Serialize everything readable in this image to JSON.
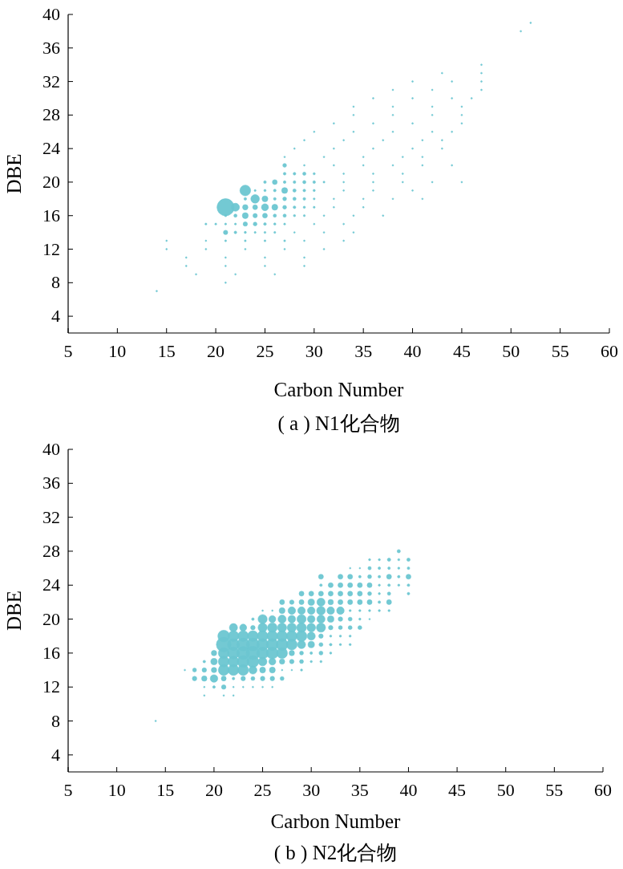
{
  "chart_data": [
    {
      "type": "bubble",
      "title": "( a ) N1化合物",
      "xlabel": "Carbon Number",
      "ylabel": "DBE",
      "color": "#6cc6d1",
      "xlim": [
        5,
        60
      ],
      "ylim": [
        2,
        40
      ],
      "xticks": [
        5,
        10,
        15,
        20,
        25,
        30,
        35,
        40,
        45,
        50,
        55,
        60
      ],
      "yticks": [
        4,
        8,
        12,
        16,
        20,
        24,
        28,
        32,
        36,
        40
      ],
      "x": [
        52,
        51,
        47,
        43,
        47,
        40,
        44,
        47,
        38,
        42,
        47,
        36,
        40,
        44,
        46,
        34,
        38,
        42,
        45,
        34,
        38,
        42,
        45,
        32,
        36,
        40,
        45,
        30,
        34,
        38,
        42,
        44,
        29,
        33,
        37,
        41,
        43,
        28,
        32,
        36,
        40,
        43,
        27,
        31,
        35,
        39,
        41,
        27,
        29,
        32,
        35,
        38,
        41,
        44,
        27,
        28,
        29,
        30,
        33,
        36,
        39,
        25,
        26,
        27,
        28,
        29,
        30,
        31,
        33,
        36,
        39,
        42,
        45,
        23,
        24,
        25,
        26,
        27,
        28,
        29,
        30,
        33,
        36,
        40,
        23,
        24,
        25,
        26,
        27,
        28,
        29,
        30,
        32,
        35,
        38,
        41,
        21,
        22,
        23,
        24,
        25,
        26,
        27,
        28,
        29,
        30,
        32,
        35,
        21,
        22,
        23,
        24,
        25,
        26,
        27,
        28,
        29,
        31,
        34,
        37,
        19,
        20,
        21,
        22,
        23,
        24,
        25,
        26,
        27,
        30,
        33,
        21,
        22,
        23,
        24,
        25,
        26,
        28,
        31,
        34,
        15,
        19,
        21,
        23,
        25,
        27,
        29,
        33,
        15,
        19,
        23,
        27,
        31,
        17,
        21,
        25,
        29,
        17,
        21,
        25,
        29,
        18,
        22,
        26,
        21,
        14
      ],
      "values": [
        39,
        38,
        34,
        33,
        33,
        32,
        32,
        32,
        31,
        31,
        31,
        30,
        30,
        30,
        30,
        29,
        29,
        29,
        29,
        28,
        28,
        28,
        28,
        27,
        27,
        27,
        27,
        26,
        26,
        26,
        26,
        26,
        25,
        25,
        25,
        25,
        25,
        24,
        24,
        24,
        24,
        24,
        23,
        23,
        23,
        23,
        23,
        22,
        22,
        22,
        22,
        22,
        22,
        22,
        21,
        21,
        21,
        21,
        21,
        21,
        21,
        20,
        20,
        20,
        20,
        20,
        20,
        20,
        20,
        20,
        20,
        20,
        20,
        19,
        19,
        19,
        19,
        19,
        19,
        19,
        19,
        19,
        19,
        19,
        18,
        18,
        18,
        18,
        18,
        18,
        18,
        18,
        18,
        18,
        18,
        18,
        17,
        17,
        17,
        17,
        17,
        17,
        17,
        17,
        17,
        17,
        17,
        17,
        16,
        16,
        16,
        16,
        16,
        16,
        16,
        16,
        16,
        16,
        16,
        16,
        15,
        15,
        15,
        15,
        15,
        15,
        15,
        15,
        15,
        15,
        15,
        14,
        14,
        14,
        14,
        14,
        14,
        14,
        14,
        14,
        13,
        13,
        13,
        13,
        13,
        13,
        13,
        13,
        12,
        12,
        12,
        12,
        12,
        11,
        11,
        11,
        11,
        10,
        10,
        10,
        10,
        9,
        9,
        9,
        8,
        7
      ],
      "sizes": [
        0.008,
        0.008,
        0.008,
        0.008,
        0.008,
        0.008,
        0.008,
        0.008,
        0.008,
        0.008,
        0.008,
        0.008,
        0.008,
        0.008,
        0.008,
        0.008,
        0.008,
        0.008,
        0.008,
        0.008,
        0.008,
        0.008,
        0.008,
        0.008,
        0.008,
        0.008,
        0.008,
        0.008,
        0.008,
        0.008,
        0.008,
        0.008,
        0.008,
        0.008,
        0.008,
        0.008,
        0.008,
        0.008,
        0.008,
        0.008,
        0.008,
        0.008,
        0.008,
        0.008,
        0.008,
        0.008,
        0.008,
        0.048,
        0.008,
        0.008,
        0.008,
        0.008,
        0.008,
        0.008,
        0.024,
        0.024,
        0.035,
        0.016,
        0.008,
        0.008,
        0.008,
        0.024,
        0.079,
        0.024,
        0.024,
        0.035,
        0.024,
        0.012,
        0.008,
        0.008,
        0.008,
        0.008,
        0.008,
        0.39,
        0.012,
        0.016,
        0.024,
        0.118,
        0.035,
        0.024,
        0.016,
        0.008,
        0.008,
        0.008,
        0.024,
        0.25,
        0.118,
        0.024,
        0.048,
        0.035,
        0.024,
        0.012,
        0.008,
        0.008,
        0.008,
        0.008,
        1,
        0.22,
        0.098,
        0.079,
        0.165,
        0.118,
        0.048,
        0.024,
        0.016,
        0.012,
        0.008,
        0.008,
        0.016,
        0.035,
        0.118,
        0.063,
        0.079,
        0.035,
        0.035,
        0.016,
        0.012,
        0.008,
        0.008,
        0.008,
        0.012,
        0.012,
        0.012,
        0.012,
        0.063,
        0.048,
        0.024,
        0.016,
        0.012,
        0.008,
        0.008,
        0.063,
        0.024,
        0.016,
        0.012,
        0.012,
        0.012,
        0.008,
        0.008,
        0.008,
        0.008,
        0.008,
        0.012,
        0.012,
        0.012,
        0.012,
        0.008,
        0.008,
        0.008,
        0.008,
        0.008,
        0.008,
        0.008,
        0.008,
        0.008,
        0.008,
        0.008,
        0.008,
        0.008,
        0.008,
        0.008,
        0.008,
        0.008,
        0.008,
        0.008,
        0.008
      ]
    },
    {
      "type": "bubble",
      "title": "( b ) N2化合物",
      "xlabel": "Carbon Number",
      "ylabel": "DBE",
      "color": "#6cc6d1",
      "xlim": [
        5,
        60
      ],
      "ylim": [
        2,
        40
      ],
      "xticks": [
        5,
        10,
        15,
        20,
        25,
        30,
        35,
        40,
        45,
        50,
        55,
        60
      ],
      "yticks": [
        4,
        8,
        12,
        16,
        20,
        24,
        28,
        32,
        36,
        40
      ],
      "x": [
        39,
        36,
        37,
        38,
        39,
        40,
        34,
        35,
        36,
        37,
        38,
        39,
        40,
        31,
        33,
        34,
        35,
        36,
        37,
        38,
        39,
        40,
        31,
        32,
        33,
        34,
        35,
        36,
        37,
        38,
        39,
        40,
        29,
        30,
        31,
        32,
        33,
        34,
        35,
        36,
        37,
        38,
        40,
        27,
        28,
        29,
        30,
        31,
        32,
        33,
        34,
        35,
        36,
        37,
        38,
        25,
        26,
        27,
        28,
        29,
        30,
        31,
        32,
        33,
        34,
        35,
        36,
        37,
        38,
        24,
        25,
        26,
        27,
        28,
        29,
        30,
        31,
        32,
        33,
        34,
        35,
        36,
        22,
        23,
        24,
        25,
        26,
        27,
        28,
        29,
        30,
        31,
        32,
        33,
        34,
        35,
        21,
        22,
        23,
        24,
        25,
        26,
        27,
        28,
        29,
        30,
        31,
        32,
        33,
        34,
        21,
        22,
        23,
        24,
        25,
        26,
        27,
        28,
        29,
        30,
        31,
        32,
        33,
        34,
        20,
        21,
        22,
        23,
        24,
        25,
        26,
        27,
        28,
        29,
        30,
        31,
        32,
        19,
        20,
        21,
        22,
        23,
        24,
        25,
        26,
        27,
        28,
        29,
        30,
        31,
        17,
        18,
        19,
        20,
        21,
        22,
        23,
        24,
        25,
        26,
        27,
        28,
        29,
        18,
        19,
        20,
        21,
        22,
        23,
        24,
        25,
        26,
        27,
        19,
        20,
        21,
        22,
        23,
        24,
        25,
        26,
        19,
        21,
        22,
        14
      ],
      "values": [
        28,
        27,
        27,
        27,
        27,
        27,
        26,
        26,
        26,
        26,
        26,
        26,
        26,
        25,
        25,
        25,
        25,
        25,
        25,
        25,
        25,
        25,
        24,
        24,
        24,
        24,
        24,
        24,
        24,
        24,
        24,
        24,
        23,
        23,
        23,
        23,
        23,
        23,
        23,
        23,
        23,
        23,
        23,
        22,
        22,
        22,
        22,
        22,
        22,
        22,
        22,
        22,
        22,
        22,
        22,
        21,
        21,
        21,
        21,
        21,
        21,
        21,
        21,
        21,
        21,
        21,
        21,
        21,
        21,
        20,
        20,
        20,
        20,
        20,
        20,
        20,
        20,
        20,
        20,
        20,
        20,
        20,
        19,
        19,
        19,
        19,
        19,
        19,
        19,
        19,
        19,
        19,
        19,
        19,
        19,
        19,
        18,
        18,
        18,
        18,
        18,
        18,
        18,
        18,
        18,
        18,
        18,
        18,
        18,
        18,
        17,
        17,
        17,
        17,
        17,
        17,
        17,
        17,
        17,
        17,
        17,
        17,
        17,
        17,
        16,
        16,
        16,
        16,
        16,
        16,
        16,
        16,
        16,
        16,
        16,
        16,
        16,
        15,
        15,
        15,
        15,
        15,
        15,
        15,
        15,
        15,
        15,
        15,
        15,
        15,
        14,
        14,
        14,
        14,
        14,
        14,
        14,
        14,
        14,
        14,
        14,
        14,
        14,
        13,
        13,
        13,
        13,
        13,
        13,
        13,
        13,
        13,
        13,
        12,
        12,
        12,
        12,
        12,
        12,
        12,
        12,
        11,
        11,
        11,
        8
      ],
      "sizes": [
        0.05,
        0.02,
        0.02,
        0.05,
        0.02,
        0.05,
        0.01,
        0.01,
        0.05,
        0.03,
        0.03,
        0.02,
        0.03,
        0.11,
        0.11,
        0.11,
        0.03,
        0.07,
        0.03,
        0.11,
        0.03,
        0.11,
        0.03,
        0.11,
        0.11,
        0.11,
        0.11,
        0.11,
        0.02,
        0.03,
        0.02,
        0.03,
        0.11,
        0.11,
        0.11,
        0.11,
        0.11,
        0.11,
        0.11,
        0.07,
        0.02,
        0.05,
        0.03,
        0.11,
        0.09,
        0.11,
        0.19,
        0.3,
        0.13,
        0.11,
        0.11,
        0.11,
        0.11,
        0.03,
        0.11,
        0.01,
        0.01,
        0.16,
        0.26,
        0.26,
        0.26,
        0.34,
        0.26,
        0.26,
        0.02,
        0.02,
        0.02,
        0.02,
        0.02,
        0.03,
        0.38,
        0.22,
        0.3,
        0.26,
        0.38,
        0.26,
        0.3,
        0.19,
        0.09,
        0.07,
        0.02,
        0.01,
        0.3,
        0.22,
        0.09,
        0.38,
        0.43,
        0.38,
        0.38,
        0.43,
        0.34,
        0.38,
        0.09,
        0.07,
        0.07,
        0.07,
        0.64,
        0.53,
        0.53,
        0.53,
        0.53,
        0.53,
        0.53,
        0.53,
        0.53,
        0.3,
        0.09,
        0.02,
        0.02,
        0.02,
        1,
        0.64,
        0.76,
        0.76,
        0.64,
        0.64,
        0.64,
        0.53,
        0.3,
        0.19,
        0.07,
        0.03,
        0.02,
        0.02,
        0.13,
        0.53,
        0.64,
        0.76,
        0.83,
        0.64,
        0.64,
        0.53,
        0.13,
        0.07,
        0.03,
        0.07,
        0.02,
        0.03,
        0.19,
        0.53,
        0.53,
        0.64,
        0.64,
        0.34,
        0.22,
        0.13,
        0.09,
        0.07,
        0.02,
        0.02,
        0.01,
        0.07,
        0.09,
        0.13,
        0.53,
        0.53,
        0.53,
        0.3,
        0.16,
        0.16,
        0.01,
        0.01,
        0.02,
        0.09,
        0.13,
        0.26,
        0.11,
        0.03,
        0.09,
        0.07,
        0.09,
        0.09,
        0.07,
        0.01,
        0.03,
        0.09,
        0.01,
        0.01,
        0.01,
        0.01,
        0.01,
        0.01,
        0.01,
        0.01,
        0.01
      ]
    }
  ]
}
